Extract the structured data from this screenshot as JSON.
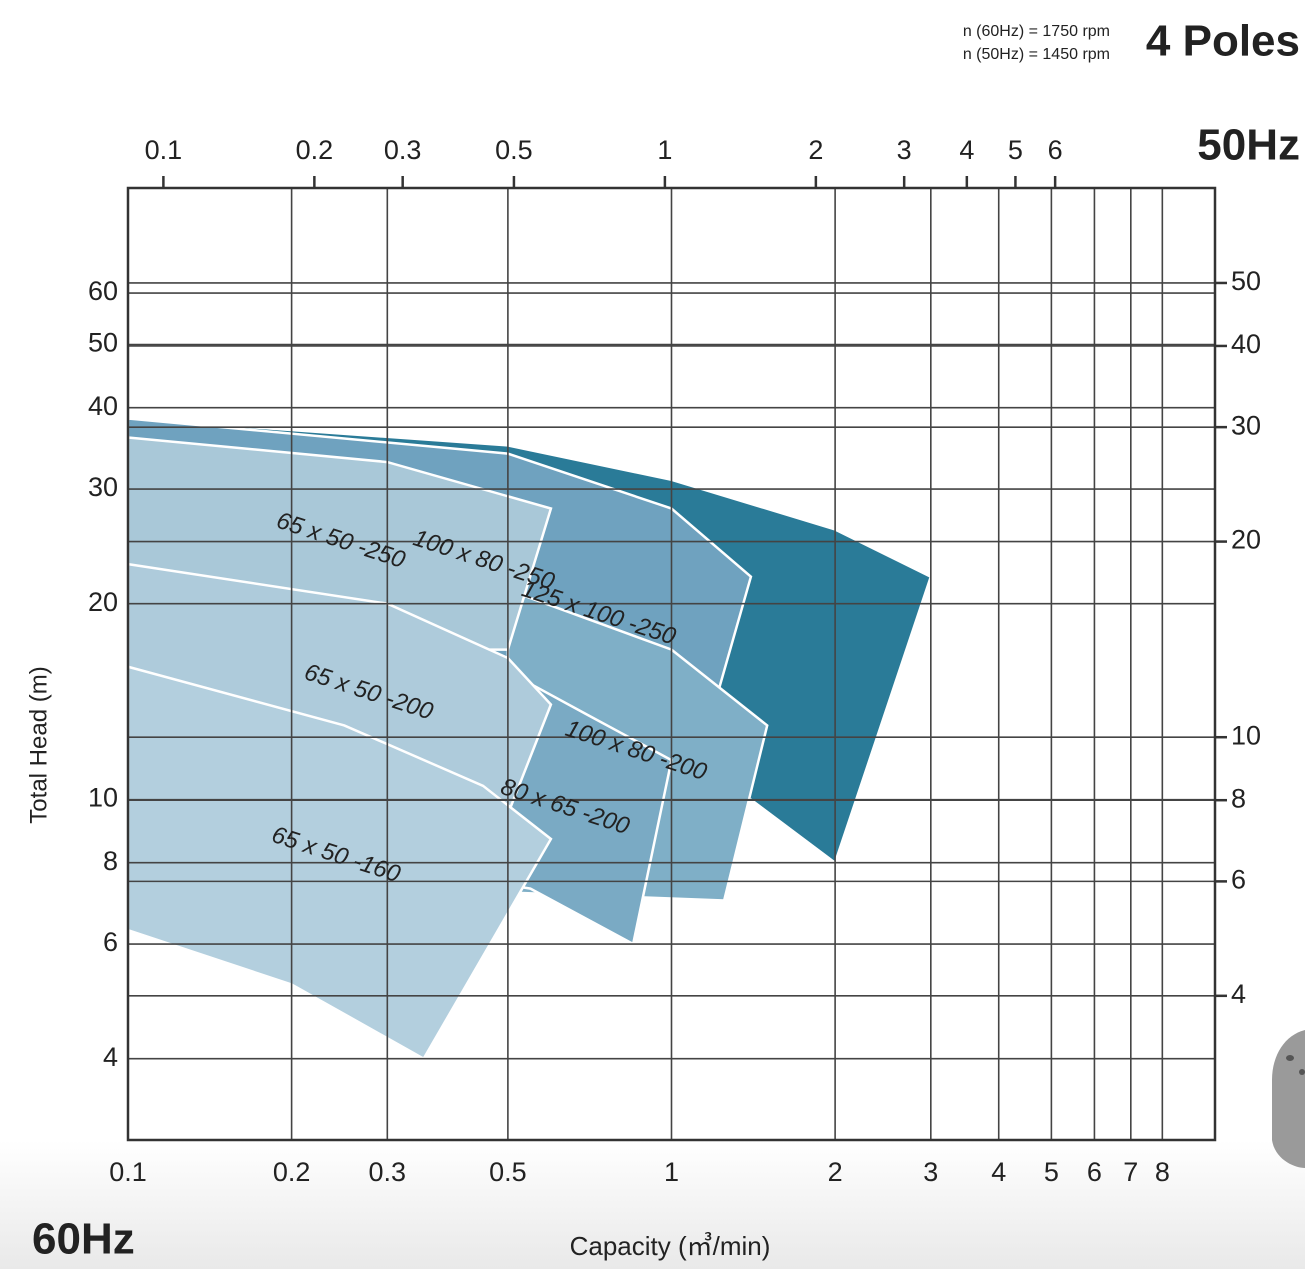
{
  "chart_data": {
    "type": "performance",
    "rpm_60": "n (60Hz) = 1750 rpm",
    "rpm_50": "n (50Hz) = 1450 rpm",
    "title": "4 Poles",
    "x2_title": "50Hz",
    "x_title": "60Hz",
    "xlabel": "Capacity (㎥/min)",
    "ylabel": "Total Head (m)",
    "xscale": "log",
    "yscale": "log",
    "grid": true,
    "xlim": [
      0.1,
      10
    ],
    "xticks": [
      0.1,
      0.2,
      0.3,
      0.5,
      1,
      2,
      3,
      4,
      5,
      6,
      7,
      8
    ],
    "x2lim": [
      0.085,
      12.5
    ],
    "x2ticks": [
      0.1,
      0.2,
      0.3,
      0.5,
      1,
      2,
      3,
      4,
      5,
      6
    ],
    "ylim": [
      3,
      87
    ],
    "yticks": [
      4,
      6,
      8,
      10,
      20,
      30,
      40,
      50,
      60
    ],
    "y2lim": [
      2.4,
      70
    ],
    "y2ticks": [
      4,
      6,
      8,
      10,
      20,
      30,
      40,
      50
    ],
    "series": [
      {
        "name": "125 x 100 -250",
        "color": "#2a7b98",
        "x": [
          0.1,
          0.5,
          1,
          2,
          3,
          2,
          1.4,
          0.1
        ],
        "values": [
          38.5,
          35,
          31,
          26,
          22,
          8,
          10,
          10
        ]
      },
      {
        "name": "100 x 80 -250",
        "color": "#6fa2bf",
        "x": [
          0.1,
          0.5,
          1,
          1.4,
          1.2,
          0.1
        ],
        "values": [
          38.5,
          34,
          28,
          22,
          14,
          14
        ]
      },
      {
        "name": "100 x 80 -200",
        "color": "#7fafc7",
        "x": [
          0.5,
          1,
          1.5,
          1.25,
          0.5
        ],
        "values": [
          21,
          17,
          13,
          7,
          7.2
        ]
      },
      {
        "name": "80 x 65 -200",
        "color": "#7aaac4",
        "x": [
          0.45,
          0.7,
          1,
          0.85,
          0.55,
          0.45
        ],
        "values": [
          16.5,
          13.5,
          11.5,
          6,
          7.3,
          7.5
        ]
      },
      {
        "name": "65 x 50 -250",
        "color": "#a9c8d8",
        "x": [
          0.1,
          0.3,
          0.6,
          0.5,
          0.1
        ],
        "values": [
          36,
          33,
          28,
          17,
          17
        ]
      },
      {
        "name": "65 x 50 -200",
        "color": "#aecbdb",
        "x": [
          0.1,
          0.3,
          0.5,
          0.6,
          0.5,
          0.1
        ],
        "values": [
          23,
          20,
          16.5,
          14,
          9.5,
          9.5
        ]
      },
      {
        "name": "65 x 50 -160",
        "color": "#b3cfde",
        "x": [
          0.1,
          0.25,
          0.45,
          0.6,
          0.35,
          0.2,
          0.1
        ],
        "values": [
          16,
          13,
          10.5,
          8.7,
          4,
          5.2,
          6.3
        ]
      }
    ]
  }
}
